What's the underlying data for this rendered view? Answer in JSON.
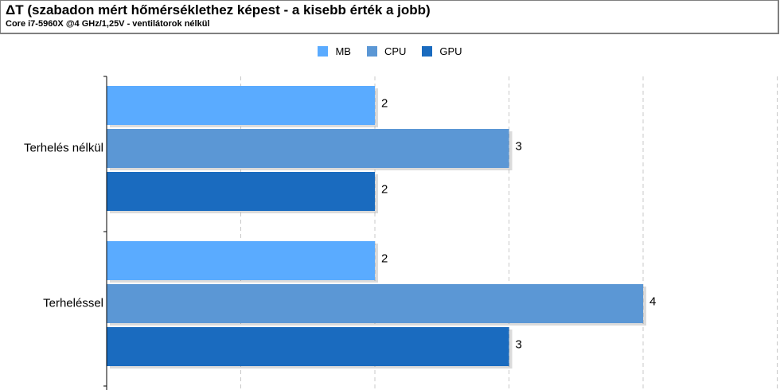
{
  "header": {
    "title": "ΔT (szabadon mért hőmérséklethez képest - a kisebb érték a jobb)",
    "subtitle": "Core i7-5960X @4 GHz/1,25V - ventilátorok nélkül"
  },
  "chart_data": {
    "type": "bar",
    "orientation": "horizontal",
    "categories": [
      "Terhelés nélkül",
      "Terheléssel"
    ],
    "series": [
      {
        "name": "MB",
        "color": "#5aabff",
        "values": [
          2,
          2
        ]
      },
      {
        "name": "CPU",
        "color": "#5b97d5",
        "values": [
          3,
          4
        ]
      },
      {
        "name": "GPU",
        "color": "#1a6bbf",
        "values": [
          2,
          3
        ]
      }
    ],
    "xlim": [
      0,
      5
    ],
    "grid": true,
    "legend_position": "top"
  }
}
